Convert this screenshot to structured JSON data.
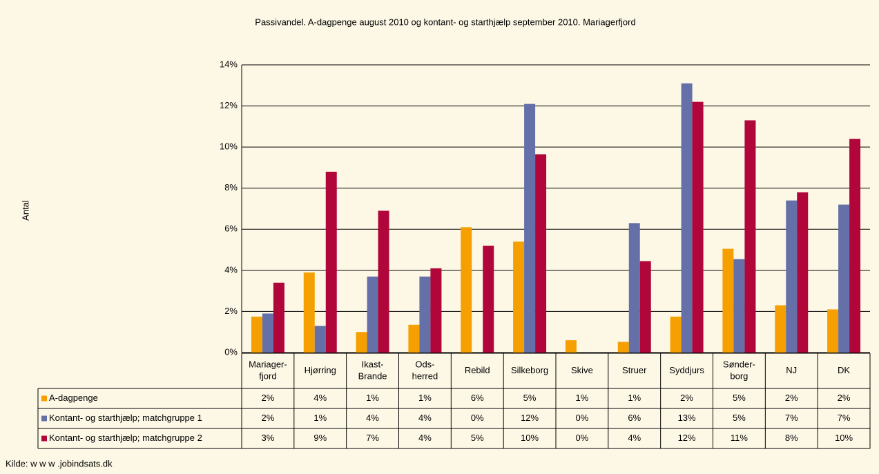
{
  "chart_data": {
    "type": "bar",
    "title": "Passivandel. A-dagpenge august 2010 og kontant- og starthjælp september 2010. Mariagerfjord",
    "y_label": "Antal",
    "source": "Kilde: w w w .jobindsats.dk",
    "categories": [
      "Mariager-\nfjord",
      "Hjørring",
      "Ikast-\nBrande",
      "Ods-\nherred",
      "Rebild",
      "Silkeborg",
      "Skive",
      "Struer",
      "Syddjurs",
      "Sønder-\nborg",
      "NJ",
      "DK"
    ],
    "series": [
      {
        "name": "A-dagpenge",
        "color": "#f5a000",
        "values": [
          1.75,
          3.9,
          1.0,
          1.35,
          6.1,
          5.4,
          0.6,
          0.52,
          1.75,
          5.05,
          2.3,
          2.1
        ],
        "value_labels": [
          "2%",
          "4%",
          "1%",
          "1%",
          "6%",
          "5%",
          "1%",
          "1%",
          "2%",
          "5%",
          "2%",
          "2%"
        ]
      },
      {
        "name": "Kontant- og starthjælp; matchgruppe 1",
        "color": "#6670a8",
        "values": [
          1.9,
          1.3,
          3.7,
          3.7,
          0,
          12.1,
          0,
          6.3,
          13.1,
          4.55,
          7.4,
          7.2
        ],
        "value_labels": [
          "2%",
          "1%",
          "4%",
          "4%",
          "0%",
          "12%",
          "0%",
          "6%",
          "13%",
          "5%",
          "7%",
          "7%"
        ]
      },
      {
        "name": "Kontant- og starthjælp; matchgruppe 2",
        "color": "#b0063a",
        "values": [
          3.4,
          8.8,
          6.9,
          4.1,
          5.2,
          9.65,
          0,
          4.45,
          12.2,
          11.3,
          7.8,
          10.4
        ],
        "value_labels": [
          "3%",
          "9%",
          "7%",
          "4%",
          "5%",
          "10%",
          "0%",
          "4%",
          "12%",
          "11%",
          "8%",
          "10%"
        ]
      }
    ],
    "ylim": [
      0,
      14
    ],
    "yticks": [
      {
        "value": 0,
        "label": "0%"
      },
      {
        "value": 2,
        "label": "2%"
      },
      {
        "value": 4,
        "label": "4%"
      },
      {
        "value": 6,
        "label": "6%"
      },
      {
        "value": 8,
        "label": "8%"
      },
      {
        "value": 10,
        "label": "10%"
      },
      {
        "value": 12,
        "label": "12%"
      },
      {
        "value": 14,
        "label": "14%"
      }
    ],
    "grid": true
  }
}
